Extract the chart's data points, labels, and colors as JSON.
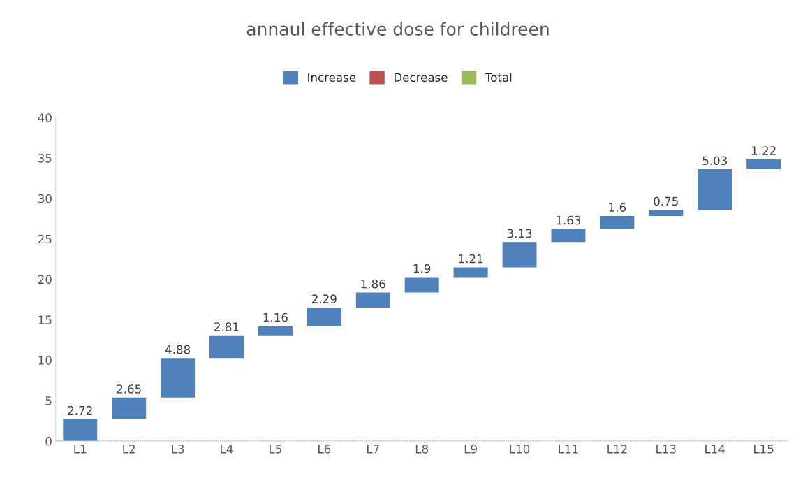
{
  "chart_data": {
    "type": "bar",
    "title": "annaul effective dose for childreen",
    "categories": [
      "L1",
      "L2",
      "L3",
      "L4",
      "L5",
      "L6",
      "L7",
      "L8",
      "L9",
      "L10",
      "L11",
      "L12",
      "L13",
      "L14",
      "L15"
    ],
    "series": [
      {
        "name": "Increase",
        "color": "#4f81bd",
        "values": [
          2.72,
          2.65,
          4.88,
          2.81,
          1.16,
          2.29,
          1.86,
          1.9,
          1.21,
          3.13,
          1.63,
          1.6,
          0.75,
          5.03,
          1.22
        ],
        "base": [
          0,
          2.72,
          5.37,
          10.25,
          13.06,
          14.22,
          16.51,
          18.37,
          20.27,
          21.48,
          24.61,
          26.24,
          27.84,
          28.59,
          33.62
        ]
      },
      {
        "name": "Decrease",
        "color": "#c0504d",
        "values": [
          null,
          null,
          null,
          null,
          null,
          null,
          null,
          null,
          null,
          null,
          null,
          null,
          null,
          null,
          null
        ]
      },
      {
        "name": "Total",
        "color": "#9bbb59",
        "values": [
          null,
          null,
          null,
          null,
          null,
          null,
          null,
          null,
          null,
          null,
          null,
          null,
          null,
          null,
          null
        ]
      }
    ],
    "ylim": [
      0,
      40
    ],
    "yticks": [
      0,
      5,
      10,
      15,
      20,
      25,
      30,
      35,
      40
    ],
    "grid": false,
    "legend": "top",
    "data_labels": true
  }
}
